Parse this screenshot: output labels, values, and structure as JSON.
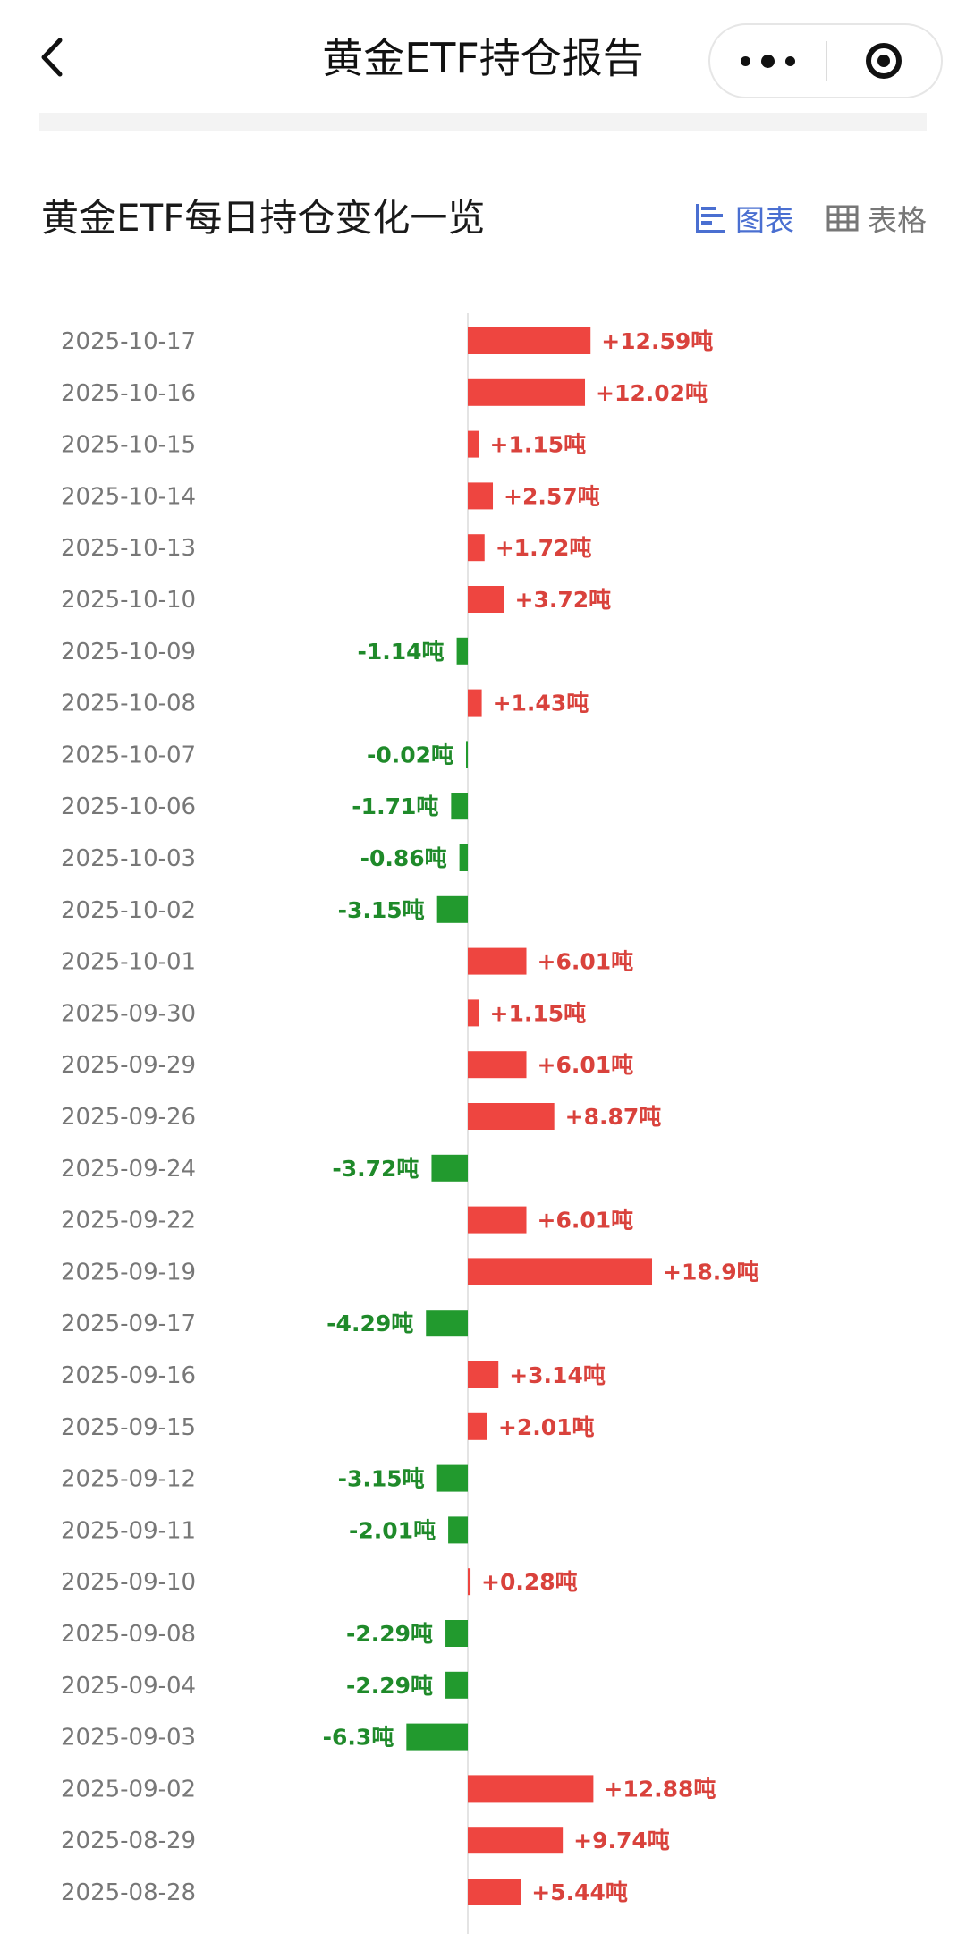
{
  "nav": {
    "title": "黄金ETF持仓报告"
  },
  "section": {
    "title": "黄金ETF每日持仓变化一览",
    "view_chart_label": "图表",
    "view_table_label": "表格"
  },
  "colors": {
    "positive": "#ee4540",
    "negative": "#229a2e",
    "positive_text": "#d9423c",
    "negative_text": "#1f8a2a",
    "accent": "#4a6fd1"
  },
  "chart_data": {
    "type": "bar",
    "orientation": "horizontal-diverging",
    "unit": "吨",
    "categories": [
      "2025-10-17",
      "2025-10-16",
      "2025-10-15",
      "2025-10-14",
      "2025-10-13",
      "2025-10-10",
      "2025-10-09",
      "2025-10-08",
      "2025-10-07",
      "2025-10-06",
      "2025-10-03",
      "2025-10-02",
      "2025-10-01",
      "2025-09-30",
      "2025-09-29",
      "2025-09-26",
      "2025-09-24",
      "2025-09-22",
      "2025-09-19",
      "2025-09-17",
      "2025-09-16",
      "2025-09-15",
      "2025-09-12",
      "2025-09-11",
      "2025-09-10",
      "2025-09-08",
      "2025-09-04",
      "2025-09-03",
      "2025-09-02",
      "2025-08-29",
      "2025-08-28"
    ],
    "values": [
      12.59,
      12.02,
      1.15,
      2.57,
      1.72,
      3.72,
      -1.14,
      1.43,
      -0.02,
      -1.71,
      -0.86,
      -3.15,
      6.01,
      1.15,
      6.01,
      8.87,
      -3.72,
      6.01,
      18.9,
      -4.29,
      3.14,
      2.01,
      -3.15,
      -2.01,
      0.28,
      -2.29,
      -2.29,
      -6.3,
      12.88,
      9.74,
      5.44
    ],
    "labels": [
      "+12.59吨",
      "+12.02吨",
      "+1.15吨",
      "+2.57吨",
      "+1.72吨",
      "+3.72吨",
      "-1.14吨",
      "+1.43吨",
      "-0.02吨",
      "-1.71吨",
      "-0.86吨",
      "-3.15吨",
      "+6.01吨",
      "+1.15吨",
      "+6.01吨",
      "+8.87吨",
      "-3.72吨",
      "+6.01吨",
      "+18.9吨",
      "-4.29吨",
      "+3.14吨",
      "+2.01吨",
      "-3.15吨",
      "-2.01吨",
      "+0.28吨",
      "-2.29吨",
      "-2.29吨",
      "-6.3吨",
      "+12.88吨",
      "+9.74吨",
      "+5.44吨"
    ],
    "grid": false,
    "legend": "none"
  }
}
